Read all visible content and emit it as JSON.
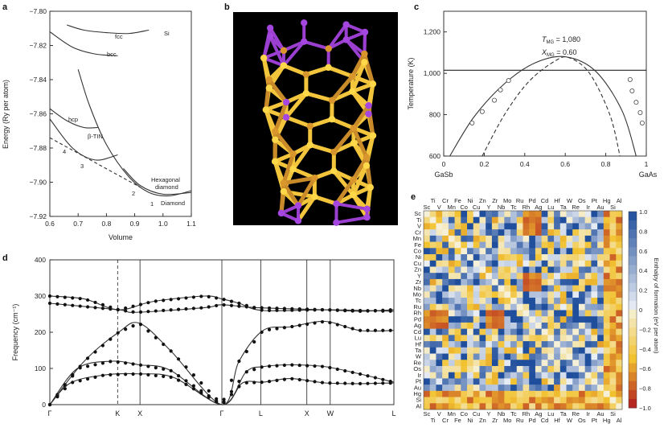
{
  "chart_data": [
    {
      "panel": "a",
      "type": "line",
      "xlabel": "Volume",
      "ylabel": "Energy (Ry per atom)",
      "xlim": [
        0.6,
        1.1
      ],
      "ylim": [
        -7.92,
        -7.8
      ],
      "xticks": [
        "0.6",
        "0.7",
        "0.8",
        "0.9",
        "1.0",
        "1.1"
      ],
      "yticks": [
        "-7.80",
        "-7.82",
        "-7.84",
        "-7.86",
        "-7.88",
        "-7.90",
        "-7.92"
      ],
      "series": [
        {
          "name": "fcc",
          "points": [
            [
              0.66,
              -7.808
            ],
            [
              0.72,
              -7.811
            ],
            [
              0.8,
              -7.8125
            ],
            [
              0.88,
              -7.813
            ],
            [
              0.95,
              -7.811
            ]
          ]
        },
        {
          "name": "bcc",
          "points": [
            [
              0.6,
              -7.812
            ],
            [
              0.68,
              -7.821
            ],
            [
              0.76,
              -7.825
            ],
            [
              0.84,
              -7.826
            ]
          ]
        },
        {
          "name": "diamond",
          "points": [
            [
              0.7,
              -7.834
            ],
            [
              0.74,
              -7.855
            ],
            [
              0.8,
              -7.878
            ],
            [
              0.88,
              -7.897
            ],
            [
              0.95,
              -7.906
            ],
            [
              1.02,
              -7.908
            ],
            [
              1.1,
              -7.905
            ]
          ]
        },
        {
          "name": "hexagonal diamond",
          "points": [
            [
              0.86,
              -7.892
            ],
            [
              0.92,
              -7.902
            ],
            [
              1.0,
              -7.907
            ],
            [
              1.1,
              -7.906
            ]
          ]
        },
        {
          "name": "hcp",
          "points": [
            [
              0.6,
              -7.857
            ],
            [
              0.66,
              -7.864
            ],
            [
              0.72,
              -7.868
            ],
            [
              0.77,
              -7.868
            ]
          ]
        },
        {
          "name": "beta-Tin",
          "points": [
            [
              0.6,
              -7.863
            ],
            [
              0.68,
              -7.88
            ],
            [
              0.76,
              -7.887
            ],
            [
              0.84,
              -7.884
            ]
          ]
        },
        {
          "name": "common tangent",
          "points": [
            [
              0.6,
              -7.874
            ],
            [
              0.92,
              -7.903
            ]
          ]
        }
      ],
      "labels": {
        "fcc": "fcc",
        "bcc": "bcc",
        "si": "Si",
        "hcp": "hcp",
        "btin": "β-TIN",
        "hexagonal": "Hexagonal",
        "hexagonal2": "diamond",
        "diamond": "Diamond",
        "n1": "1",
        "n2": "2",
        "n3": "3",
        "n4": "4"
      }
    },
    {
      "panel": "b",
      "type": "image",
      "description": "ball-and-stick molecular structure"
    },
    {
      "panel": "c",
      "type": "line",
      "xlabel_left": "GaSb",
      "xlabel_right": "GaAs",
      "ylabel": "Temperature (K)",
      "xlim": [
        0,
        1.0
      ],
      "ylim": [
        600,
        1300
      ],
      "xticks": [
        "0",
        "0.2",
        "0.4",
        "0.6",
        "0.8",
        "1"
      ],
      "yticks": [
        "600",
        "800",
        "1,000",
        "1,200"
      ],
      "annotation_t_main": "T",
      "annotation_t_sub": "MG",
      "annotation_t_val": " = 1,080",
      "annotation_x_main": "X",
      "annotation_x_sub": "MG",
      "annotation_x_val": " = 0.60",
      "horizontal_line": 1015,
      "binodal": [
        [
          0.03,
          600
        ],
        [
          0.15,
          790
        ],
        [
          0.3,
          950
        ],
        [
          0.45,
          1050
        ],
        [
          0.6,
          1080
        ],
        [
          0.75,
          1010
        ],
        [
          0.88,
          820
        ],
        [
          0.95,
          600
        ]
      ],
      "spinodal": [
        [
          0.19,
          600
        ],
        [
          0.3,
          800
        ],
        [
          0.42,
          960
        ],
        [
          0.55,
          1060
        ],
        [
          0.62,
          1075
        ],
        [
          0.72,
          1000
        ],
        [
          0.82,
          800
        ],
        [
          0.87,
          600
        ]
      ],
      "scatter": [
        [
          0.14,
          760
        ],
        [
          0.19,
          815
        ],
        [
          0.25,
          870
        ],
        [
          0.28,
          920
        ],
        [
          0.32,
          965
        ],
        [
          0.92,
          970
        ],
        [
          0.93,
          915
        ],
        [
          0.95,
          860
        ],
        [
          0.97,
          810
        ],
        [
          0.98,
          760
        ]
      ]
    },
    {
      "panel": "d",
      "type": "line",
      "ylabel": "Frequency (cm⁻¹)",
      "ylim": [
        0,
        400
      ],
      "yticks": [
        "0",
        "100",
        "200",
        "300",
        "400"
      ],
      "kpoints": [
        "Γ",
        "K",
        "X",
        "Γ",
        "L",
        "X",
        "W",
        "L"
      ],
      "branches": [
        [
          [
            0,
            280
          ],
          [
            0.2,
            262
          ],
          [
            0.25,
            255
          ],
          [
            0.45,
            268
          ],
          [
            0.5,
            276
          ],
          [
            0.6,
            268
          ],
          [
            0.8,
            262
          ],
          [
            0.9,
            258
          ],
          [
            1.0,
            262
          ]
        ],
        [
          [
            0,
            300
          ],
          [
            0.1,
            292
          ],
          [
            0.2,
            262
          ],
          [
            0.3,
            285
          ],
          [
            0.45,
            300
          ],
          [
            0.5,
            292
          ],
          [
            0.55,
            280
          ],
          [
            0.62,
            260
          ],
          [
            0.8,
            262
          ],
          [
            1.0,
            258
          ]
        ],
        [
          [
            0,
            0
          ],
          [
            0.1,
            120
          ],
          [
            0.2,
            200
          ],
          [
            0.26,
            225
          ],
          [
            0.35,
            150
          ],
          [
            0.5,
            0
          ],
          [
            0.55,
            120
          ],
          [
            0.62,
            205
          ],
          [
            0.7,
            215
          ],
          [
            0.8,
            230
          ],
          [
            0.9,
            205
          ],
          [
            1.0,
            205
          ]
        ],
        [
          [
            0,
            0
          ],
          [
            0.08,
            100
          ],
          [
            0.18,
            120
          ],
          [
            0.26,
            110
          ],
          [
            0.35,
            95
          ],
          [
            0.5,
            0
          ],
          [
            0.57,
            90
          ],
          [
            0.62,
            105
          ],
          [
            0.7,
            110
          ],
          [
            0.8,
            105
          ],
          [
            0.9,
            85
          ],
          [
            1.0,
            62
          ]
        ],
        [
          [
            0,
            0
          ],
          [
            0.06,
            60
          ],
          [
            0.16,
            82
          ],
          [
            0.26,
            85
          ],
          [
            0.36,
            75
          ],
          [
            0.5,
            0
          ],
          [
            0.56,
            60
          ],
          [
            0.62,
            62
          ],
          [
            0.7,
            72
          ],
          [
            0.8,
            60
          ],
          [
            0.9,
            58
          ],
          [
            1.0,
            60
          ]
        ]
      ]
    },
    {
      "panel": "e",
      "type": "heatmap",
      "colorbar_label": "Enthalpy of formation (eV per atom)",
      "colorbar_ticks": [
        "1.0",
        "0.8",
        "0.6",
        "0.4",
        "0.2",
        "0",
        "-0.2",
        "-0.4",
        "-0.6",
        "-0.8",
        "-1.0"
      ],
      "top_labels_row1": [
        "Ti",
        "Cr",
        "Fe",
        "Ni",
        "Zn",
        "Zr",
        "Mo",
        "Ru",
        "Pd",
        "Cd",
        "Hf",
        "W",
        "Os",
        "Pt",
        "Hg",
        "Al"
      ],
      "top_labels_row2": [
        "Sc",
        "V",
        "Mn",
        "Co",
        "Cu",
        "Y",
        "Nb",
        "Tc",
        "Rh",
        "Ag",
        "Lu",
        "Ta",
        "Re",
        "Ir",
        "Au",
        "Si"
      ],
      "bottom_labels_row1": [
        "Sc",
        "V",
        "Mn",
        "Co",
        "Cu",
        "Y",
        "Nb",
        "Tc",
        "Rh",
        "Ag",
        "Lu",
        "Ta",
        "Re",
        "Ir",
        "Au",
        "Si"
      ],
      "bottom_labels_row2": [
        "Ti",
        "Cr",
        "Fe",
        "Ni",
        "Zn",
        "Zr",
        "Mo",
        "Ru",
        "Pd",
        "Cd",
        "Hf",
        "W",
        "Os",
        "Pt",
        "Hg",
        "Al"
      ],
      "row_labels": [
        "Sc",
        "Ti",
        "V",
        "Cr",
        "Mn",
        "Fe",
        "Co",
        "Ni",
        "Cu",
        "Zn",
        "Y",
        "Zr",
        "Nb",
        "Mo",
        "Tc",
        "Ru",
        "Rh",
        "Pd",
        "Ag",
        "Cd",
        "Lu",
        "Hf",
        "Ta",
        "W",
        "Re",
        "Os",
        "Ir",
        "Pt",
        "Au",
        "Hg",
        "Si",
        "Al"
      ],
      "bottom_label_ir": "Ir"
    }
  ],
  "panel_letters": {
    "a": "a",
    "b": "b",
    "c": "c",
    "d": "d",
    "e": "e"
  },
  "colors": {
    "scale_pos_max": "#1f4e9c",
    "scale_zero": "#f4f4f0",
    "scale_neg_mid": "#f2c230",
    "scale_neg_max": "#b0171f"
  }
}
